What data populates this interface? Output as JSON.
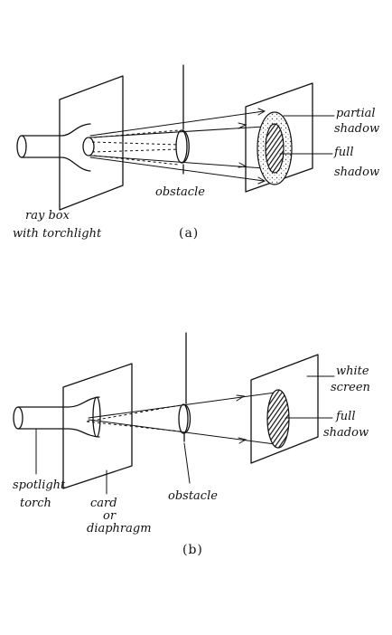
{
  "diagram_a": {
    "labels": {
      "partial_1": "partial",
      "partial_2": "shadow",
      "full_1": "full",
      "full_2": "shadow",
      "obstacle": "obstacle",
      "raybox_1": "ray box",
      "raybox_2": "with torchlight"
    },
    "caption": "(a)"
  },
  "diagram_b": {
    "labels": {
      "white_1": "white",
      "white_2": "screen",
      "full_1": "full",
      "full_2": "shadow",
      "spot_1": "spotlight",
      "spot_2": "torch",
      "card_1": "card",
      "card_2": "or",
      "card_3": "diaphragm",
      "obstacle": "obstacle"
    },
    "caption": "(b)"
  },
  "colors": {
    "ink": "#111111",
    "background": "#ffffff"
  }
}
